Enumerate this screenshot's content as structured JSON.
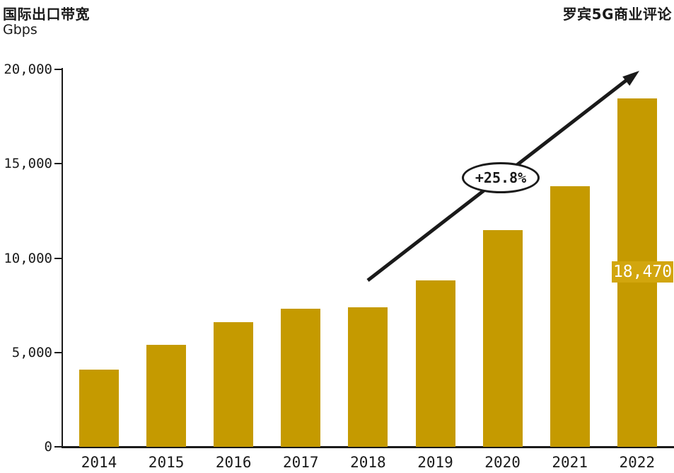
{
  "header": {
    "title": "国际出口带宽",
    "unit": "Gbps",
    "source": "罗宾5G商业评论"
  },
  "chart_data": {
    "type": "bar",
    "title": "国际出口带宽",
    "ylabel": "Gbps",
    "categories": [
      "2014",
      "2015",
      "2016",
      "2017",
      "2018",
      "2019",
      "2020",
      "2021",
      "2022"
    ],
    "values": [
      4100,
      5400,
      6600,
      7300,
      7400,
      8800,
      11500,
      13800,
      18470
    ],
    "ylim": [
      0,
      20000
    ],
    "yticks": [
      0,
      5000,
      10000,
      15000,
      20000
    ],
    "grid": false,
    "legend": "none",
    "bar_color": "#C59A00",
    "axis_color": "#1A1A1A",
    "annotation": {
      "text": "+25.8%",
      "shape": "ellipse-on-arrow"
    },
    "data_label": {
      "category": "2022",
      "text": "18,470",
      "bg_color": "#D2A60E",
      "text_color": "#FFFFFF"
    }
  }
}
